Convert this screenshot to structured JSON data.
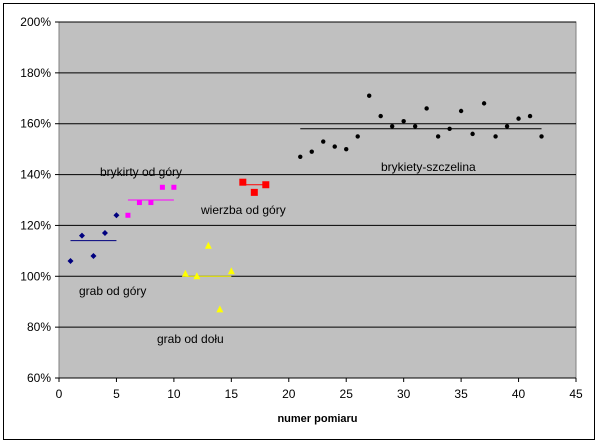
{
  "chart_data": {
    "type": "scatter",
    "xlabel": "numer pomiaru",
    "ylabel": "",
    "xlim": [
      0,
      45
    ],
    "ylim": [
      0.6,
      2.0
    ],
    "x_ticks": [
      "0",
      "5",
      "10",
      "15",
      "20",
      "25",
      "30",
      "35",
      "40",
      "45"
    ],
    "y_ticks": [
      "60%",
      "80%",
      "100%",
      "120%",
      "140%",
      "160%",
      "180%",
      "200%"
    ],
    "grid": "horizontal",
    "plot_background": "#c0c0c0",
    "series": [
      {
        "name": "grab od góry",
        "marker": "diamond",
        "color": "#00007f",
        "x": [
          1,
          2,
          3,
          4,
          5
        ],
        "y": [
          1.06,
          1.16,
          1.08,
          1.17,
          1.24
        ],
        "mean": 1.14,
        "mean_range": [
          1,
          5
        ]
      },
      {
        "name": "brykiety od góry",
        "marker": "square",
        "color": "#ff00ff",
        "x": [
          6,
          7,
          8,
          9,
          10
        ],
        "y": [
          1.24,
          1.29,
          1.29,
          1.35,
          1.35
        ],
        "mean": 1.3,
        "mean_range": [
          6,
          10
        ]
      },
      {
        "name": "grab od dołu",
        "marker": "triangle",
        "color": "#ffff00",
        "x": [
          11,
          12,
          13,
          14,
          15
        ],
        "y": [
          1.01,
          1.0,
          1.12,
          0.87,
          1.02
        ],
        "mean": 1.0,
        "mean_range": [
          11,
          15
        ]
      },
      {
        "name": "wierzba od góry",
        "marker": "square",
        "color": "#ff0000",
        "x": [
          16,
          17,
          18
        ],
        "y": [
          1.37,
          1.33,
          1.36
        ],
        "mean": 1.36,
        "mean_range": [
          16,
          18
        ]
      },
      {
        "name": "brykiety-szczelina",
        "marker": "circle",
        "color": "#000000",
        "x": [
          21,
          22,
          23,
          24,
          25,
          26,
          27,
          28,
          29,
          30,
          31,
          32,
          33,
          34,
          35,
          36,
          37,
          38,
          39,
          40,
          41,
          42
        ],
        "y": [
          1.47,
          1.49,
          1.53,
          1.51,
          1.5,
          1.55,
          1.71,
          1.63,
          1.59,
          1.61,
          1.59,
          1.66,
          1.55,
          1.58,
          1.65,
          1.56,
          1.68,
          1.55,
          1.59,
          1.62,
          1.63,
          1.55
        ],
        "mean": 1.58,
        "mean_range": [
          21,
          42
        ]
      }
    ],
    "annotations": [
      {
        "text": "grab od góry",
        "series": 0
      },
      {
        "text": "brykirty od góry",
        "series": 1
      },
      {
        "text": "grab od dołu",
        "series": 2
      },
      {
        "text": "wierzba od góry",
        "series": 3
      },
      {
        "text": "brykiety-szczelina",
        "series": 4
      }
    ]
  }
}
